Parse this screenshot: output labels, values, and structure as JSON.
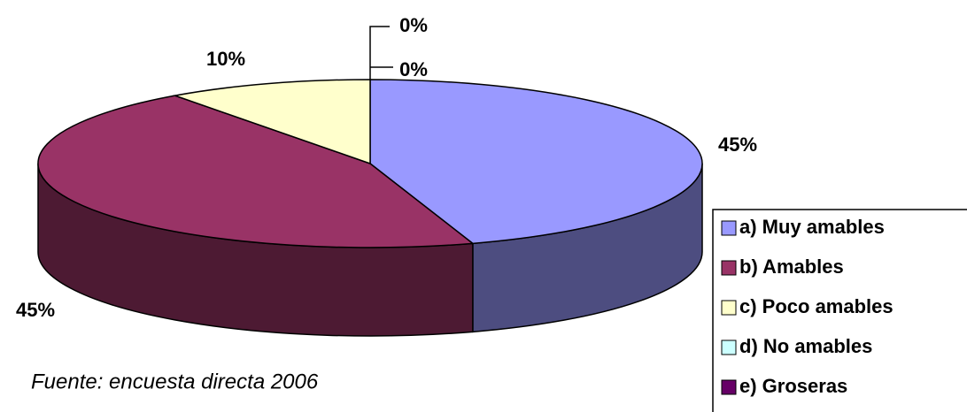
{
  "chart_data": {
    "type": "pie",
    "categories": [
      "a) Muy amables",
      "b) Amables",
      "c) Poco amables",
      "d) No amables",
      "e) Groseras"
    ],
    "values": [
      45,
      45,
      10,
      0,
      0
    ],
    "value_labels": [
      "45%",
      "45%",
      "10%",
      "0%",
      "0%"
    ],
    "colors": [
      "#9999ff",
      "#993366",
      "#ffffcc",
      "#ccffff",
      "#660066"
    ],
    "annotation": "Fuente: encuesta directa 2006",
    "legend": "right"
  }
}
